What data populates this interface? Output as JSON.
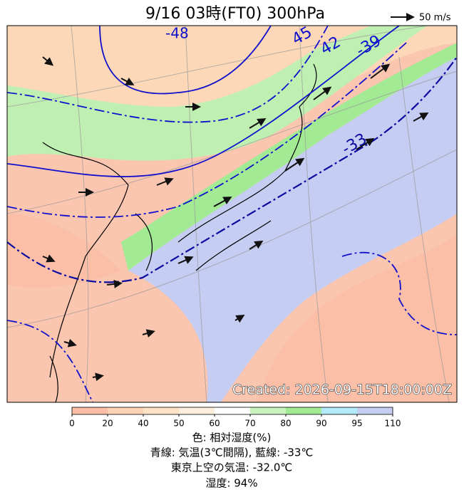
{
  "header": {
    "title": "9/16 03時(FT0)    300hPa",
    "wind_scale": "50 m/s"
  },
  "map": {
    "contour_labels": [
      "-48",
      "45",
      "42",
      "-39",
      "-33"
    ],
    "created": "Created: 2026-09-15T18:00:00Z"
  },
  "colorbar": {
    "ticks": [
      0,
      20,
      40,
      50,
      60,
      70,
      80,
      90,
      95,
      110
    ],
    "colors": [
      "#fbbfa8",
      "#fcd3b4",
      "#fde2c6",
      "#fdeedd",
      "#ffffff",
      "#c8f3bd",
      "#a3ea95",
      "#b2eafa",
      "#c5cdf3"
    ]
  },
  "footer": {
    "color_label": "色: 相対湿度(%)",
    "line_label": "青線: 気温(3℃間隔), 藍線: -33℃",
    "tokyo_temp": "東京上空の気温: -32.0℃",
    "humidity": "湿度: 94%"
  }
}
